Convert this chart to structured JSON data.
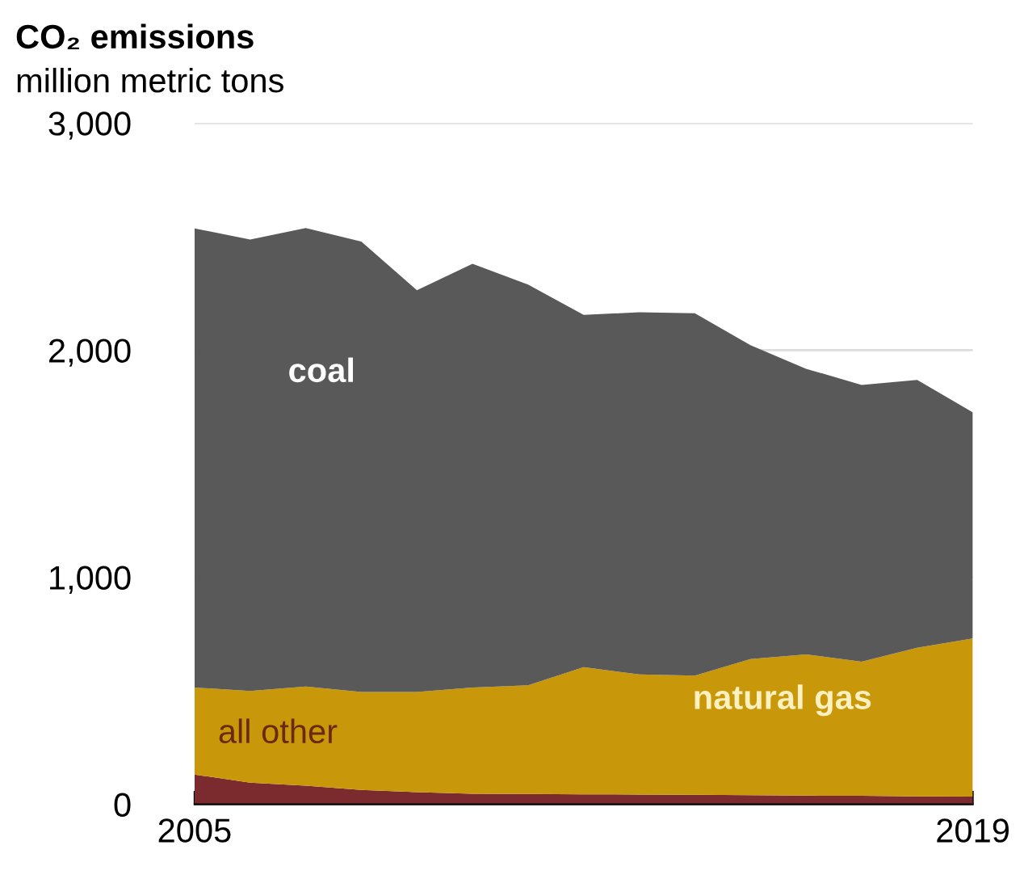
{
  "chart_data": {
    "type": "area",
    "stacked": true,
    "title": "CO₂ emissions",
    "subtitle": "million metric tons",
    "x": [
      2005,
      2006,
      2007,
      2008,
      2009,
      2010,
      2011,
      2012,
      2013,
      2014,
      2015,
      2016,
      2017,
      2018,
      2019
    ],
    "series": [
      {
        "name": "all other",
        "color": "#7b2a2d",
        "values": [
          131,
          95,
          82,
          63,
          53,
          46,
          45,
          44,
          43,
          42,
          40,
          38,
          37,
          35,
          34
        ]
      },
      {
        "name": "natural gas",
        "color": "#c8980a",
        "values": [
          383,
          404,
          437,
          432,
          442,
          468,
          479,
          560,
          529,
          525,
          600,
          622,
          591,
          654,
          696
        ]
      },
      {
        "name": "coal",
        "color": "#595959",
        "values": [
          2022,
          1988,
          2019,
          1983,
          1769,
          1866,
          1765,
          1551,
          1595,
          1595,
          1382,
          1258,
          1219,
          1180,
          996
        ]
      }
    ],
    "xlim": [
      2005,
      2019
    ],
    "xticks": [
      2005,
      2019
    ],
    "ylim": [
      0,
      3000
    ],
    "yticks": [
      {
        "value": 0,
        "label": "0"
      },
      {
        "value": 1000,
        "label": "1,000"
      },
      {
        "value": 2000,
        "label": "2,000"
      },
      {
        "value": 3000,
        "label": "3,000"
      }
    ],
    "grid": "y",
    "legend": false
  }
}
